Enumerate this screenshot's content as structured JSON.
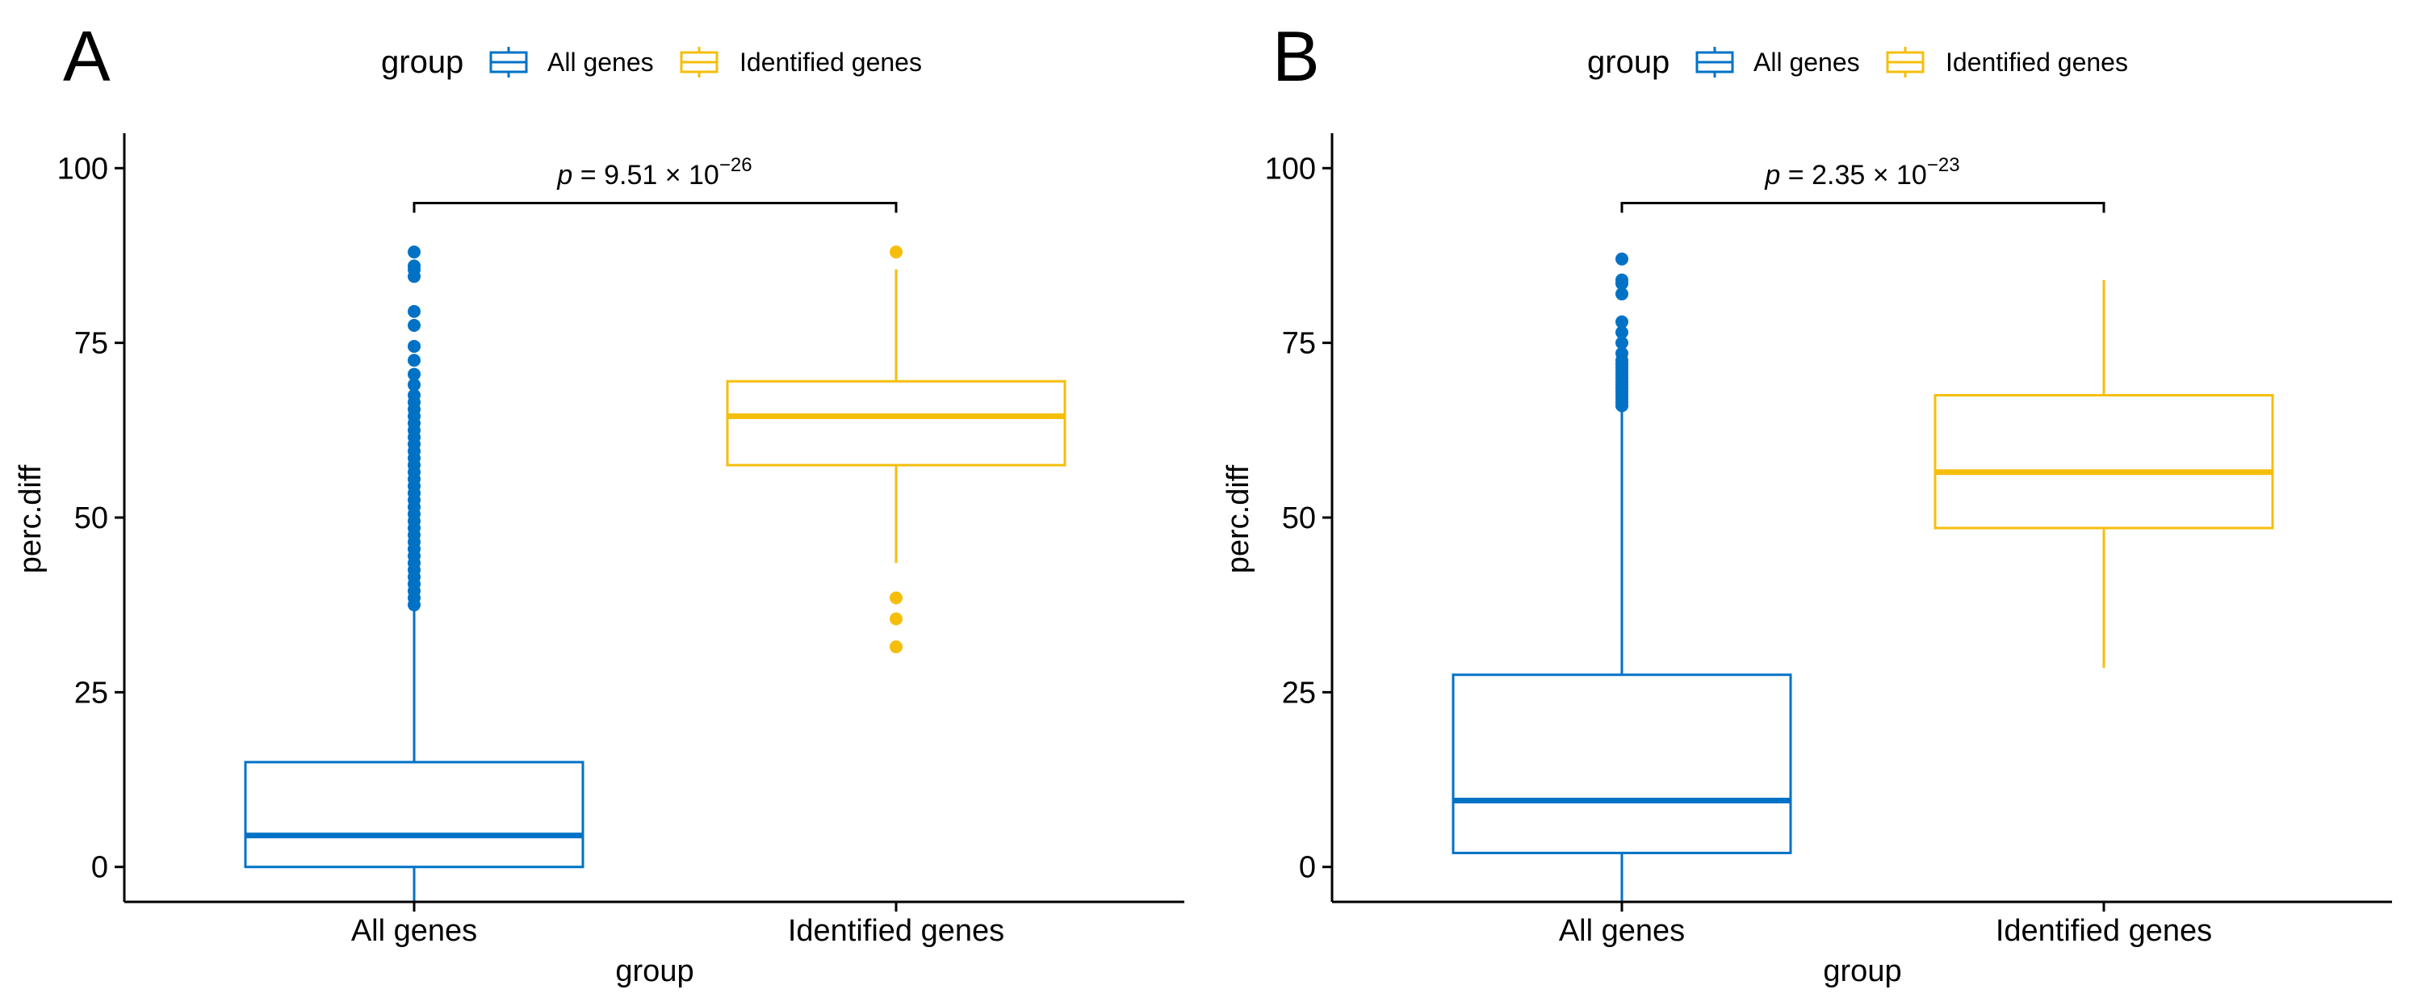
{
  "chart_data": [
    {
      "panel_label": "A",
      "type": "box",
      "legend_title": "group",
      "legend_position": "top",
      "legend": [
        {
          "label": "All genes",
          "color": "#0072C6"
        },
        {
          "label": "Identified genes",
          "color": "#F5BE0B"
        }
      ],
      "xlabel": "group",
      "ylabel": "perc.diff",
      "ylim": [
        -5,
        105
      ],
      "yticks": [
        0,
        25,
        50,
        75,
        100
      ],
      "categories": [
        "All genes",
        "Identified genes"
      ],
      "boxes": [
        {
          "name": "All genes",
          "color": "#0072C6",
          "whisker_low": -5,
          "q1": 0,
          "median": 4.5,
          "q3": 15,
          "whisker_high": 37,
          "outliers": [
            37.5,
            38.5,
            39.5,
            40.5,
            41.5,
            42.5,
            43.5,
            44.5,
            45.5,
            46.5,
            47.5,
            48.5,
            49.5,
            50.5,
            51.5,
            52.5,
            53.5,
            54.5,
            55.5,
            56.5,
            57.5,
            58.5,
            59.5,
            60.5,
            61.5,
            62.5,
            63.5,
            64.5,
            65.5,
            66.5,
            67.5,
            69,
            70.5,
            72.5,
            74.5,
            77.5,
            79.5,
            84.5,
            85.5,
            86,
            88
          ]
        },
        {
          "name": "Identified genes",
          "color": "#F5BE0B",
          "whisker_low": 43.5,
          "q1": 57.5,
          "median": 64.5,
          "q3": 69.5,
          "whisker_high": 85.5,
          "outliers": [
            31.5,
            35.5,
            38.5,
            88
          ]
        }
      ],
      "annotation": {
        "p_prefix": "p",
        "p_text": " = 9.51 × 10",
        "p_exp": "−26",
        "bracket_y": 95
      }
    },
    {
      "panel_label": "B",
      "type": "box",
      "legend_title": "group",
      "legend_position": "top",
      "legend": [
        {
          "label": "All genes",
          "color": "#0072C6"
        },
        {
          "label": "Identified genes",
          "color": "#F5BE0B"
        }
      ],
      "xlabel": "group",
      "ylabel": "perc.diff",
      "ylim": [
        -5,
        105
      ],
      "yticks": [
        0,
        25,
        50,
        75,
        100
      ],
      "categories": [
        "All genes",
        "Identified genes"
      ],
      "boxes": [
        {
          "name": "All genes",
          "color": "#0072C6",
          "whisker_low": -5,
          "q1": 2,
          "median": 9.5,
          "q3": 27.5,
          "whisker_high": 65.5,
          "outliers": [
            66,
            66.5,
            67,
            67.5,
            68,
            68.5,
            69,
            69.5,
            70,
            70.5,
            71,
            71.5,
            72,
            72.5,
            73.5,
            75,
            76.5,
            78,
            82,
            83.5,
            84,
            87
          ]
        },
        {
          "name": "Identified genes",
          "color": "#F5BE0B",
          "whisker_low": 28.5,
          "q1": 48.5,
          "median": 56.5,
          "q3": 67.5,
          "whisker_high": 84,
          "outliers": []
        }
      ],
      "annotation": {
        "p_prefix": "p",
        "p_text": " = 2.35 × 10",
        "p_exp": "−23",
        "bracket_y": 95
      }
    }
  ]
}
